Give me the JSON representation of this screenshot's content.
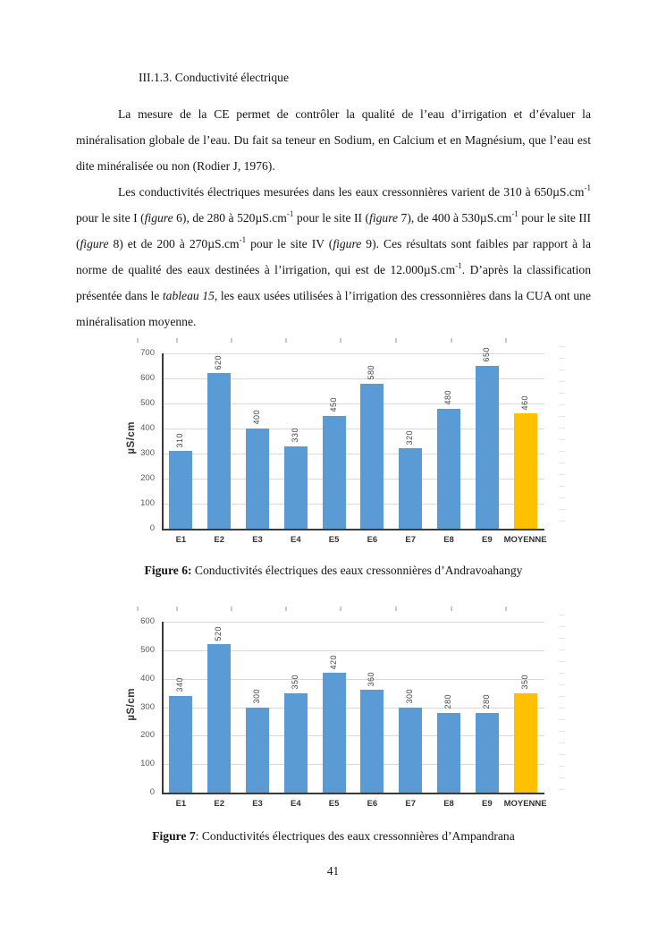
{
  "document": {
    "heading": "III.1.3. Conductivité électrique",
    "page_number": "41",
    "paragraph1_runs": [
      {
        "text": "La mesure de la CE permet de contrôler la qualité de l’eau d’irrigation et d’évaluer la minéralisation globale de l’eau. Du fait sa teneur en Sodium, en Calcium et en Magnésium, que l’eau est dite minéralisée ou non (Rodier J, 1976)."
      }
    ],
    "paragraph2_runs": [
      {
        "text": "Les conductivités électriques mesurées dans les eaux cressonnières varient de 310 à 650µS.cm"
      },
      {
        "text": "-1",
        "sup": true
      },
      {
        "text": " pour le site I ("
      },
      {
        "text": "figure",
        "italic": true
      },
      {
        "text": " 6), de 280 à 520µS.cm"
      },
      {
        "text": "-1",
        "sup": true
      },
      {
        "text": " pour le site II ("
      },
      {
        "text": "figure",
        "italic": true
      },
      {
        "text": " 7), de 400 à 530µS.cm"
      },
      {
        "text": "-1",
        "sup": true
      },
      {
        "text": " pour le site III ("
      },
      {
        "text": "figure",
        "italic": true
      },
      {
        "text": " 8) et de 200 à 270µS.cm"
      },
      {
        "text": "-1",
        "sup": true
      },
      {
        "text": " pour le site IV ("
      },
      {
        "text": "figure",
        "italic": true
      },
      {
        "text": " 9). Ces résultats sont faibles par rapport à la norme de qualité des eaux destinées à l’irrigation, qui est de 12.000µS.cm"
      },
      {
        "text": "-1",
        "sup": true
      },
      {
        "text": ". D’après la classification présentée dans le "
      },
      {
        "text": "tableau 15",
        "italic": true
      },
      {
        "text": ", les eaux usées utilisées à l’irrigation des cressonnières dans la CUA ont une minéralisation moyenne."
      }
    ]
  },
  "chart_data": [
    {
      "type": "bar",
      "figure_label": "Figure 6:",
      "caption": " Conductivités électriques des eaux cressonnières d’Andravoahangy",
      "categories": [
        "E1",
        "E2",
        "E3",
        "E4",
        "E5",
        "E6",
        "E7",
        "E8",
        "E9",
        "MOYENNE"
      ],
      "values": [
        310,
        620,
        400,
        330,
        450,
        580,
        320,
        480,
        650,
        460
      ],
      "xlabel": "",
      "ylabel": "µS/cm",
      "ylim": [
        0,
        700
      ],
      "ytick_step": 100,
      "grid": true,
      "legend": "none",
      "bar_color": "#5B9BD5",
      "highlight_index": 9,
      "highlight_color": "#FFC000",
      "gridline_color": "#D9D9D9",
      "axis_color": "#3B3B3B"
    },
    {
      "type": "bar",
      "figure_label": "Figure 7",
      "caption": ": Conductivités électriques des eaux cressonnières d’Ampandrana",
      "categories": [
        "E1",
        "E2",
        "E3",
        "E4",
        "E5",
        "E6",
        "E7",
        "E8",
        "E9",
        "MOYENNE"
      ],
      "values": [
        340,
        520,
        300,
        350,
        420,
        360,
        300,
        280,
        280,
        350
      ],
      "xlabel": "",
      "ylabel": "µS/cm",
      "ylim": [
        0,
        600
      ],
      "ytick_step": 100,
      "grid": true,
      "legend": "none",
      "bar_color": "#5B9BD5",
      "highlight_index": 9,
      "highlight_color": "#FFC000",
      "gridline_color": "#D9D9D9",
      "axis_color": "#3B3B3B"
    }
  ]
}
